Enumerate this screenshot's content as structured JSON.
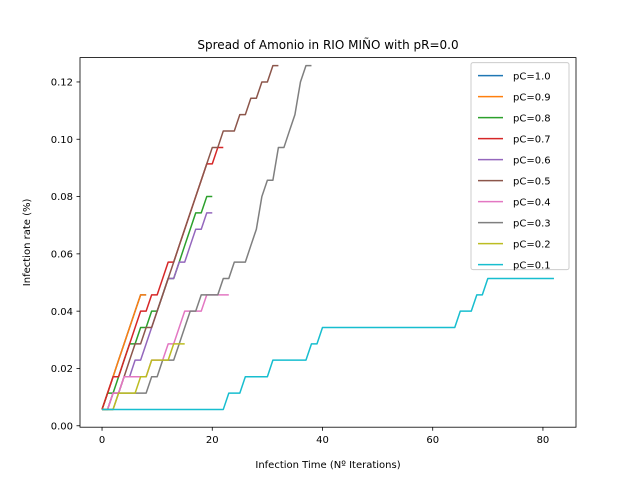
{
  "chart_data": {
    "type": "line",
    "title": "Spread of Amonio in RIO MIÑO with pR=0.0",
    "xlabel": "Infection Time (Nº Iterations)",
    "ylabel": "Infection rate (%)",
    "xlim": [
      -4,
      86
    ],
    "ylim": [
      -0.0005,
      0.1285
    ],
    "xticks": [
      0,
      20,
      40,
      60,
      80
    ],
    "yticks": [
      0.0,
      0.02,
      0.04,
      0.06,
      0.08,
      0.1,
      0.12
    ],
    "ytick_labels": [
      "0.00",
      "0.02",
      "0.04",
      "0.06",
      "0.08",
      "0.10",
      "0.12"
    ],
    "legend_position": "upper right",
    "grid": false,
    "series": [
      {
        "name": "pC=1.0",
        "color": "#1f77b4",
        "x": [
          0,
          1,
          2,
          3,
          4,
          5,
          6,
          7,
          8
        ],
        "y": [
          0.0057,
          0.0114,
          0.0171,
          0.0229,
          0.0286,
          0.0343,
          0.04,
          0.0457,
          0.0457
        ]
      },
      {
        "name": "pC=0.9",
        "color": "#ff7f0e",
        "x": [
          0,
          1,
          2,
          3,
          4,
          5,
          6,
          7,
          8
        ],
        "y": [
          0.0057,
          0.0114,
          0.0171,
          0.0229,
          0.0286,
          0.0343,
          0.04,
          0.0457,
          0.0457
        ]
      },
      {
        "name": "pC=0.8",
        "color": "#2ca02c",
        "x": [
          0,
          1,
          2,
          3,
          4,
          5,
          6,
          7,
          8,
          9,
          10,
          11,
          12,
          13,
          14,
          15,
          16,
          17,
          18,
          19,
          20
        ],
        "y": [
          0.0057,
          0.0114,
          0.0114,
          0.0171,
          0.0229,
          0.0286,
          0.0286,
          0.0343,
          0.0343,
          0.04,
          0.04,
          0.0457,
          0.0514,
          0.0514,
          0.0571,
          0.0629,
          0.0686,
          0.0743,
          0.0743,
          0.08,
          0.08
        ]
      },
      {
        "name": "pC=0.7",
        "color": "#d62728",
        "x": [
          0,
          1,
          2,
          3,
          4,
          5,
          6,
          7,
          8,
          9,
          10,
          11,
          12,
          13,
          14,
          15,
          16,
          17,
          18,
          19,
          20,
          21,
          22
        ],
        "y": [
          0.0057,
          0.0114,
          0.0171,
          0.0171,
          0.0229,
          0.0286,
          0.0343,
          0.04,
          0.04,
          0.0457,
          0.0457,
          0.0514,
          0.0571,
          0.0571,
          0.0629,
          0.0686,
          0.0743,
          0.08,
          0.0857,
          0.0914,
          0.0914,
          0.0971,
          0.0971
        ]
      },
      {
        "name": "pC=0.6",
        "color": "#9467bd",
        "x": [
          0,
          1,
          2,
          3,
          4,
          5,
          6,
          7,
          8,
          9,
          10,
          11,
          12,
          13,
          14,
          15,
          16,
          17,
          18,
          19,
          20
        ],
        "y": [
          0.0057,
          0.0057,
          0.0114,
          0.0114,
          0.0171,
          0.0171,
          0.0229,
          0.0229,
          0.0286,
          0.0343,
          0.04,
          0.0457,
          0.0514,
          0.0514,
          0.0571,
          0.0571,
          0.0629,
          0.0686,
          0.0686,
          0.0743,
          0.0743
        ]
      },
      {
        "name": "pC=0.5",
        "color": "#8c564b",
        "x": [
          0,
          1,
          2,
          3,
          4,
          5,
          6,
          7,
          8,
          9,
          10,
          11,
          12,
          13,
          14,
          15,
          16,
          17,
          18,
          19,
          20,
          21,
          22,
          23,
          24,
          25,
          26,
          27,
          28,
          29,
          30,
          31,
          32
        ],
        "y": [
          0.0057,
          0.0057,
          0.0114,
          0.0114,
          0.0171,
          0.0229,
          0.0286,
          0.0286,
          0.0343,
          0.0343,
          0.04,
          0.0457,
          0.0514,
          0.0571,
          0.0629,
          0.0686,
          0.0743,
          0.08,
          0.0857,
          0.0914,
          0.0971,
          0.0971,
          0.1029,
          0.1029,
          0.1029,
          0.1086,
          0.1086,
          0.1143,
          0.1143,
          0.12,
          0.12,
          0.1257,
          0.1257
        ]
      },
      {
        "name": "pC=0.4",
        "color": "#e377c2",
        "x": [
          0,
          1,
          2,
          3,
          4,
          5,
          6,
          7,
          8,
          9,
          10,
          11,
          12,
          13,
          14,
          15,
          16,
          17,
          18,
          19,
          20,
          21,
          22,
          23
        ],
        "y": [
          0.0057,
          0.0057,
          0.0114,
          0.0114,
          0.0171,
          0.0171,
          0.0171,
          0.0171,
          0.0171,
          0.0229,
          0.0229,
          0.0229,
          0.0286,
          0.0286,
          0.0343,
          0.04,
          0.04,
          0.04,
          0.04,
          0.0457,
          0.0457,
          0.0457,
          0.0457,
          0.0457
        ]
      },
      {
        "name": "pC=0.3",
        "color": "#7f7f7f",
        "x": [
          0,
          1,
          2,
          3,
          4,
          5,
          6,
          7,
          8,
          9,
          10,
          11,
          12,
          13,
          14,
          15,
          16,
          17,
          18,
          19,
          20,
          21,
          22,
          23,
          24,
          25,
          26,
          27,
          28,
          29,
          30,
          31,
          32,
          33,
          34,
          35,
          36,
          37,
          38
        ],
        "y": [
          0.0057,
          0.0057,
          0.0057,
          0.0114,
          0.0114,
          0.0114,
          0.0114,
          0.0114,
          0.0114,
          0.0171,
          0.0171,
          0.0229,
          0.0229,
          0.0229,
          0.0286,
          0.0343,
          0.04,
          0.04,
          0.0457,
          0.0457,
          0.0457,
          0.0457,
          0.0514,
          0.0514,
          0.0571,
          0.0571,
          0.0571,
          0.0629,
          0.0686,
          0.08,
          0.0857,
          0.0857,
          0.0971,
          0.0971,
          0.1029,
          0.1086,
          0.12,
          0.1257,
          0.1257
        ]
      },
      {
        "name": "pC=0.2",
        "color": "#bcbd22",
        "x": [
          0,
          1,
          2,
          3,
          4,
          5,
          6,
          7,
          8,
          9,
          10,
          11,
          12,
          13,
          14,
          15
        ],
        "y": [
          0.0057,
          0.0057,
          0.0057,
          0.0114,
          0.0114,
          0.0114,
          0.0114,
          0.0171,
          0.0171,
          0.0229,
          0.0229,
          0.0229,
          0.0229,
          0.0286,
          0.0286,
          0.0286
        ]
      },
      {
        "name": "pC=0.1",
        "color": "#17becf",
        "x": [
          0,
          22,
          23,
          25,
          26,
          30,
          31,
          37,
          38,
          39,
          40,
          64,
          65,
          67,
          68,
          69,
          70,
          82
        ],
        "y": [
          0.0057,
          0.0057,
          0.0114,
          0.0114,
          0.0171,
          0.0171,
          0.0229,
          0.0229,
          0.0286,
          0.0286,
          0.0343,
          0.0343,
          0.04,
          0.04,
          0.0457,
          0.0457,
          0.0514,
          0.0514
        ]
      }
    ]
  }
}
